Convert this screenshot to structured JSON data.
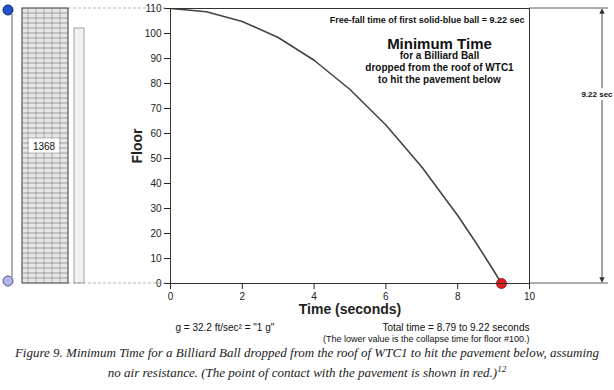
{
  "chart_data": {
    "type": "line",
    "title": "Minimum Time",
    "subtitle": [
      "for a Billiard Ball",
      "dropped from the roof of WTC1",
      "to hit the pavement below"
    ],
    "xlabel": "Time (seconds)",
    "ylabel": "Floor",
    "xlim": [
      0,
      10
    ],
    "xticks": [
      0,
      2,
      4,
      6,
      8,
      10
    ],
    "ylim": [
      0,
      110
    ],
    "yticks": [
      0,
      10,
      20,
      30,
      40,
      50,
      60,
      70,
      80,
      90,
      100,
      110
    ],
    "grid": false,
    "series": [
      {
        "type": "line",
        "color": "#444444",
        "line_style": "solid",
        "x": [
          0,
          1,
          2,
          3,
          4,
          5,
          6,
          7,
          8,
          8.5,
          9,
          9.22
        ],
        "values": [
          110,
          108.7,
          104.8,
          98.4,
          89.3,
          77.6,
          63.4,
          46.6,
          27.2,
          16.5,
          5.2,
          0
        ]
      },
      {
        "type": "scatter",
        "color": "#e02020",
        "marker": "circle",
        "x": [
          9.22
        ],
        "values": [
          0
        ]
      }
    ],
    "annotations": {
      "top_note": "Free-fall time of first solid-blue ball = 9.22 sec",
      "height": "1368",
      "arrow_label": "9.22 sec",
      "total_time": "Total time = 8.79 to 9.22 seconds",
      "note": "(The lower value is the collapse time for floor #100.)",
      "gravity": "g = 32.2 ft/sec² = \"1 g\""
    },
    "caption": "Figure 9. Minimum Time for a Billiard Ball dropped from the roof of WTC1 to hit the pavement below, assuming no air resistance. (The point of contact with the pavement is shown in red.)",
    "caption_ref": "12"
  }
}
